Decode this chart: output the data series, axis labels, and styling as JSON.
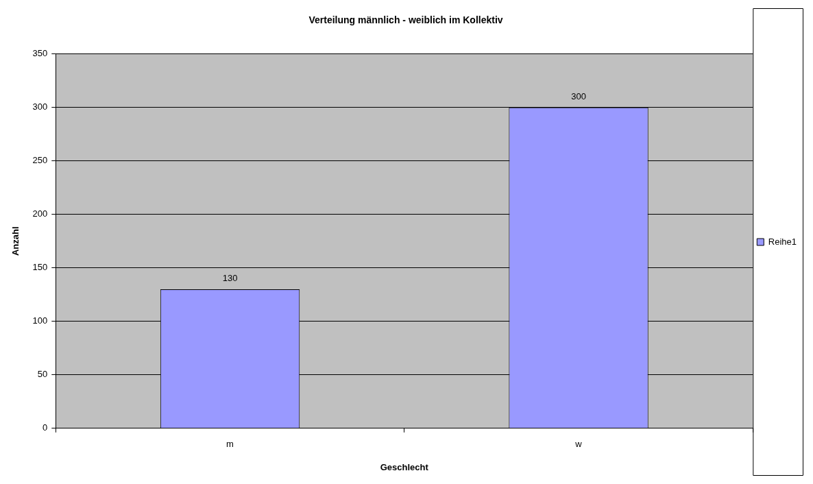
{
  "chart_data": {
    "type": "bar",
    "title": "Verteilung männlich - weiblich im Kollektiv",
    "xlabel": "Geschlecht",
    "ylabel": "Anzahl",
    "categories": [
      "m",
      "w"
    ],
    "series": [
      {
        "name": "Reihe1",
        "color": "#9999ff",
        "values": [
          130,
          300
        ]
      }
    ],
    "ylim": [
      0,
      350
    ],
    "yticks": [
      0,
      50,
      100,
      150,
      200,
      250,
      300,
      350
    ],
    "grid": "y",
    "legend": "right",
    "data_labels": true
  }
}
